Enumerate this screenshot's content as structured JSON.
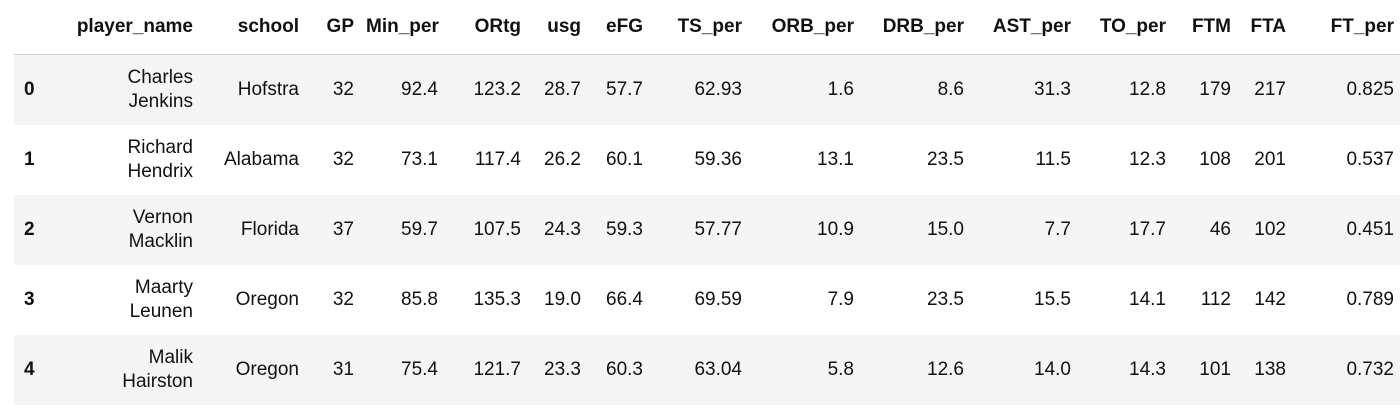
{
  "table": {
    "index_header": "",
    "columns": [
      "player_name",
      "school",
      "GP",
      "Min_per",
      "ORtg",
      "usg",
      "eFG",
      "TS_per",
      "ORB_per",
      "DRB_per",
      "AST_per",
      "TO_per",
      "FTM",
      "FTA",
      "FT_per"
    ],
    "rows": [
      {
        "index": "0",
        "player_first": "Charles",
        "player_last": "Jenkins",
        "school": "Hofstra",
        "GP": "32",
        "Min_per": "92.4",
        "ORtg": "123.2",
        "usg": "28.7",
        "eFG": "57.7",
        "TS_per": "62.93",
        "ORB_per": "1.6",
        "DRB_per": "8.6",
        "AST_per": "31.3",
        "TO_per": "12.8",
        "FTM": "179",
        "FTA": "217",
        "FT_per": "0.825"
      },
      {
        "index": "1",
        "player_first": "Richard",
        "player_last": "Hendrix",
        "school": "Alabama",
        "GP": "32",
        "Min_per": "73.1",
        "ORtg": "117.4",
        "usg": "26.2",
        "eFG": "60.1",
        "TS_per": "59.36",
        "ORB_per": "13.1",
        "DRB_per": "23.5",
        "AST_per": "11.5",
        "TO_per": "12.3",
        "FTM": "108",
        "FTA": "201",
        "FT_per": "0.537"
      },
      {
        "index": "2",
        "player_first": "Vernon",
        "player_last": "Macklin",
        "school": "Florida",
        "GP": "37",
        "Min_per": "59.7",
        "ORtg": "107.5",
        "usg": "24.3",
        "eFG": "59.3",
        "TS_per": "57.77",
        "ORB_per": "10.9",
        "DRB_per": "15.0",
        "AST_per": "7.7",
        "TO_per": "17.7",
        "FTM": "46",
        "FTA": "102",
        "FT_per": "0.451"
      },
      {
        "index": "3",
        "player_first": "Maarty",
        "player_last": "Leunen",
        "school": "Oregon",
        "GP": "32",
        "Min_per": "85.8",
        "ORtg": "135.3",
        "usg": "19.0",
        "eFG": "66.4",
        "TS_per": "69.59",
        "ORB_per": "7.9",
        "DRB_per": "23.5",
        "AST_per": "15.5",
        "TO_per": "14.1",
        "FTM": "112",
        "FTA": "142",
        "FT_per": "0.789"
      },
      {
        "index": "4",
        "player_first": "Malik",
        "player_last": "Hairston",
        "school": "Oregon",
        "GP": "31",
        "Min_per": "75.4",
        "ORtg": "121.7",
        "usg": "23.3",
        "eFG": "60.3",
        "TS_per": "63.04",
        "ORB_per": "5.8",
        "DRB_per": "12.6",
        "AST_per": "14.0",
        "TO_per": "14.3",
        "FTM": "101",
        "FTA": "138",
        "FT_per": "0.732"
      }
    ]
  }
}
